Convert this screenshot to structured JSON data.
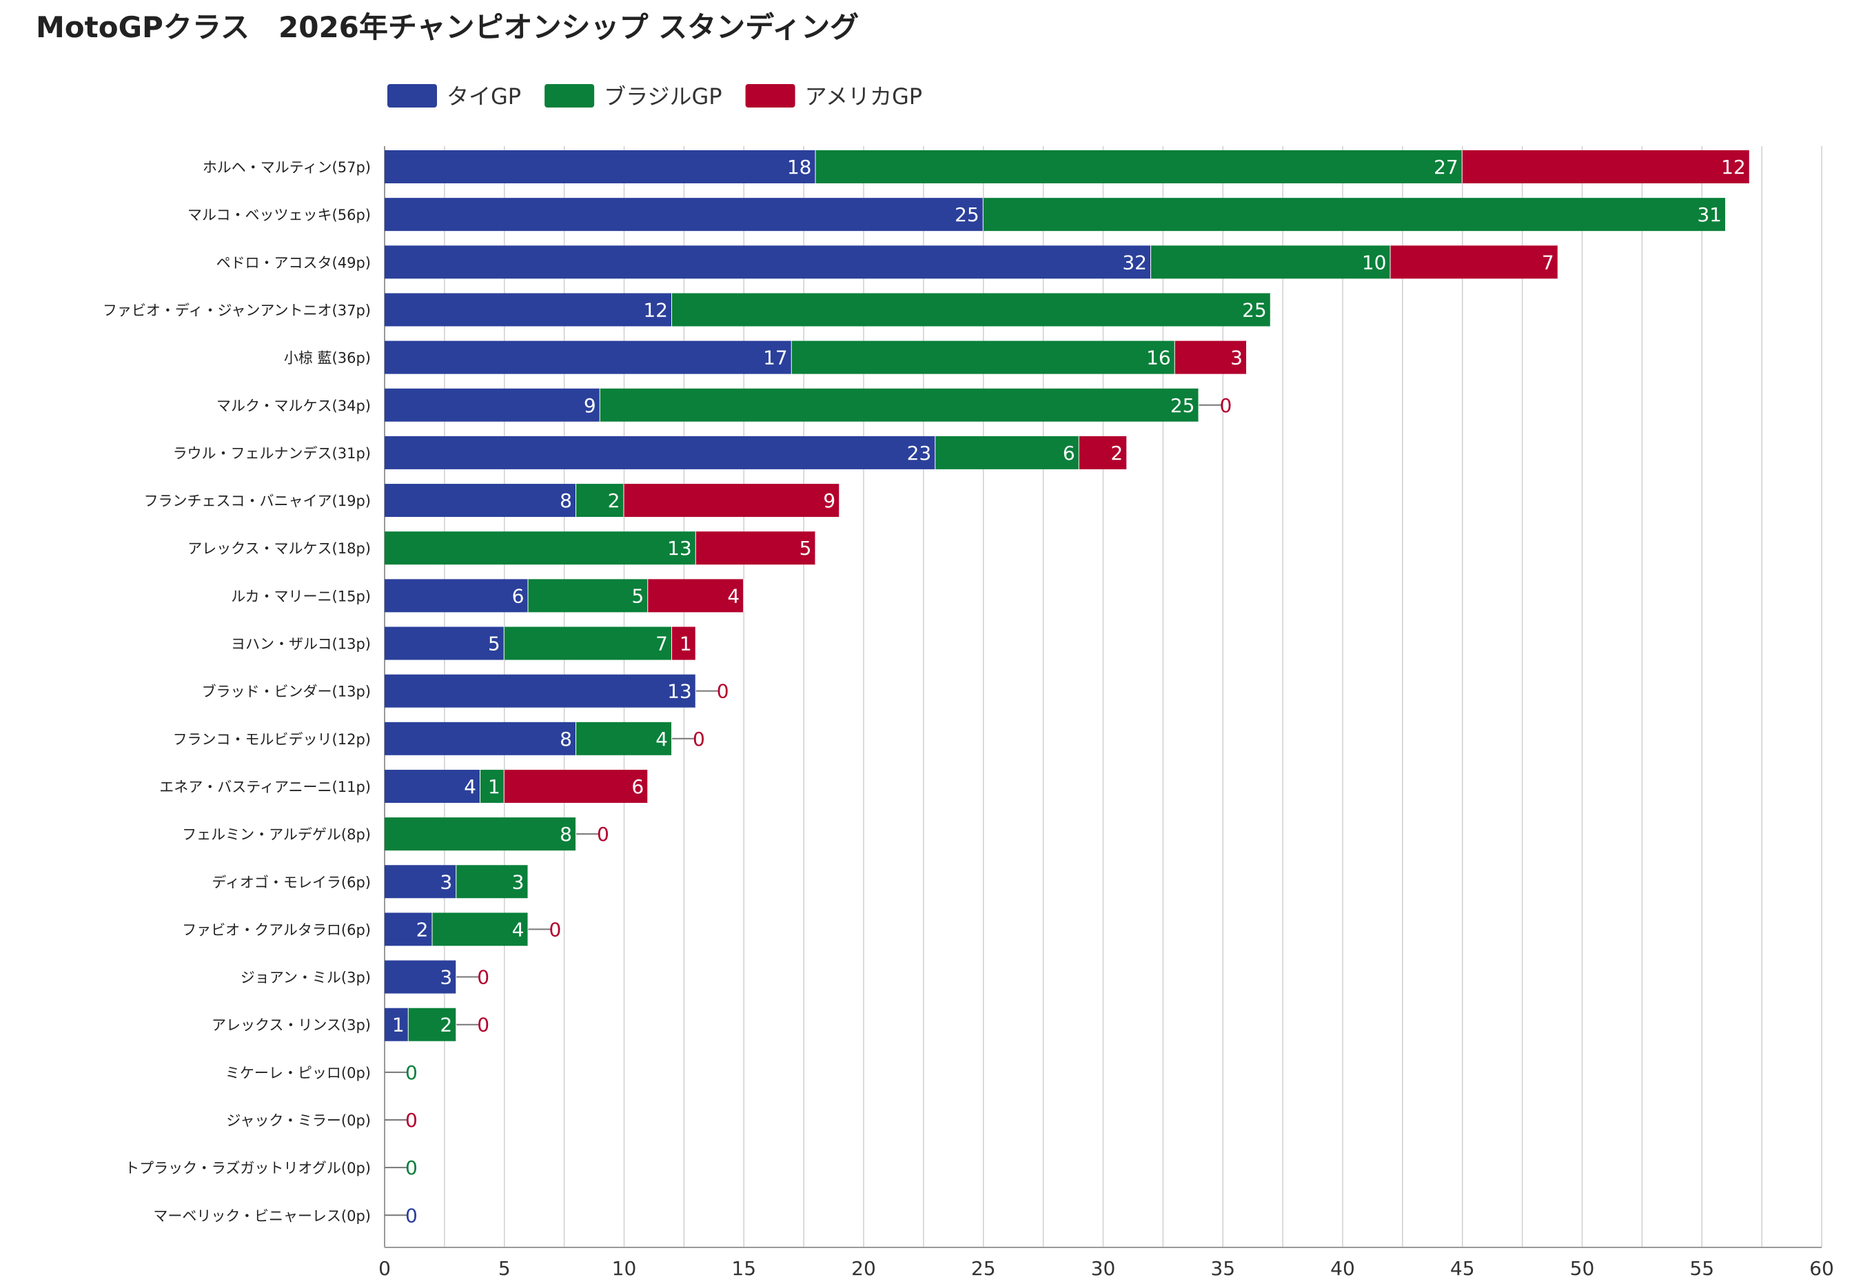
{
  "chart_data": {
    "type": "bar",
    "orientation": "horizontal",
    "stacked": true,
    "title": "MotoGPクラス　2026年チャンピオンシップ スタンディング",
    "xlim": [
      0,
      60
    ],
    "x_ticks": [
      "0",
      "5",
      "10",
      "15",
      "20",
      "25",
      "30",
      "35",
      "40",
      "45",
      "50",
      "55",
      "60"
    ],
    "grid": "vertical",
    "legend_position": "top-left",
    "categories": [
      "ホルヘ・マルティン(57p)",
      "マルコ・ベッツェッキ(56p)",
      "ペドロ・アコスタ(49p)",
      "ファビオ・ディ・ジャンアントニオ(37p)",
      "小椋 藍(36p)",
      "マルク・マルケス(34p)",
      "ラウル・フェルナンデス(31p)",
      "フランチェスコ・バニャイア(19p)",
      "アレックス・マルケス(18p)",
      "ルカ・マリーニ(15p)",
      "ヨハン・ザルコ(13p)",
      "ブラッド・ビンダー(13p)",
      "フランコ・モルビデッリ(12p)",
      "エネア・バスティアニーニ(11p)",
      "フェルミン・アルデゲル(8p)",
      "ディオゴ・モレイラ(6p)",
      "ファビオ・クアルタラロ(6p)",
      "ジョアン・ミル(3p)",
      "アレックス・リンス(3p)",
      "ミケーレ・ピッロ(0p)",
      "ジャック・ミラー(0p)",
      "トプラック・ラズガットリオグル(0p)",
      "マーベリック・ビニャーレス(0p)"
    ],
    "series": [
      {
        "name": "タイGP",
        "color": "#2b409b",
        "values": [
          18,
          25,
          32,
          12,
          17,
          9,
          23,
          8,
          0,
          6,
          5,
          13,
          8,
          4,
          null,
          3,
          2,
          3,
          1,
          null,
          null,
          null,
          0
        ]
      },
      {
        "name": "ブラジルGP",
        "color": "#0a803a",
        "values": [
          27,
          31,
          10,
          25,
          16,
          25,
          6,
          2,
          13,
          5,
          7,
          null,
          4,
          1,
          8,
          3,
          4,
          null,
          2,
          0,
          null,
          0,
          null
        ]
      },
      {
        "name": "アメリカGP",
        "color": "#b3002d",
        "values": [
          12,
          null,
          7,
          null,
          3,
          0,
          2,
          9,
          5,
          4,
          1,
          0,
          0,
          6,
          0,
          null,
          0,
          0,
          0,
          null,
          0,
          null,
          null
        ]
      }
    ]
  }
}
